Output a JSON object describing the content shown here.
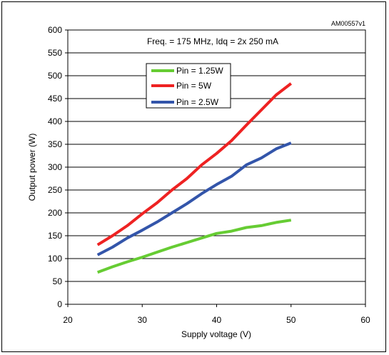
{
  "figure_code": "AM00557v1",
  "chart_data": {
    "type": "line",
    "title": "",
    "annotation": "Freq. = 175 MHz, Idq = 2x 250 mA",
    "xlabel": "Supply voltage (V)",
    "ylabel": "Output power (W)",
    "xlim": [
      20,
      60
    ],
    "ylim": [
      0,
      600
    ],
    "xticks": [
      "20",
      "30",
      "40",
      "50",
      "60"
    ],
    "yticks": [
      "0",
      "50",
      "100",
      "150",
      "200",
      "250",
      "300",
      "350",
      "400",
      "450",
      "500",
      "550",
      "600"
    ],
    "grid": "horizontal",
    "legend_position": "top-left inside plot",
    "series": [
      {
        "name": "Pin = 1.25W",
        "color": "#66cc33",
        "x": [
          24,
          26,
          28,
          30,
          32,
          34,
          36,
          38,
          40,
          42,
          44,
          46,
          48,
          50
        ],
        "y": [
          70,
          82,
          93,
          103,
          114,
          125,
          135,
          145,
          155,
          160,
          168,
          172,
          179,
          184
        ]
      },
      {
        "name": "Pin = 5W",
        "color": "#ee2222",
        "x": [
          24,
          26,
          28,
          30,
          32,
          34,
          36,
          38,
          40,
          42,
          44,
          46,
          48,
          50
        ],
        "y": [
          130,
          150,
          172,
          198,
          222,
          250,
          275,
          305,
          330,
          358,
          392,
          425,
          458,
          483
        ]
      },
      {
        "name": "Pin = 2.5W",
        "color": "#3355aa",
        "x": [
          24,
          26,
          28,
          30,
          32,
          34,
          36,
          38,
          40,
          42,
          44,
          46,
          48,
          50
        ],
        "y": [
          108,
          125,
          145,
          162,
          180,
          200,
          220,
          242,
          262,
          280,
          305,
          320,
          340,
          353
        ]
      }
    ]
  }
}
